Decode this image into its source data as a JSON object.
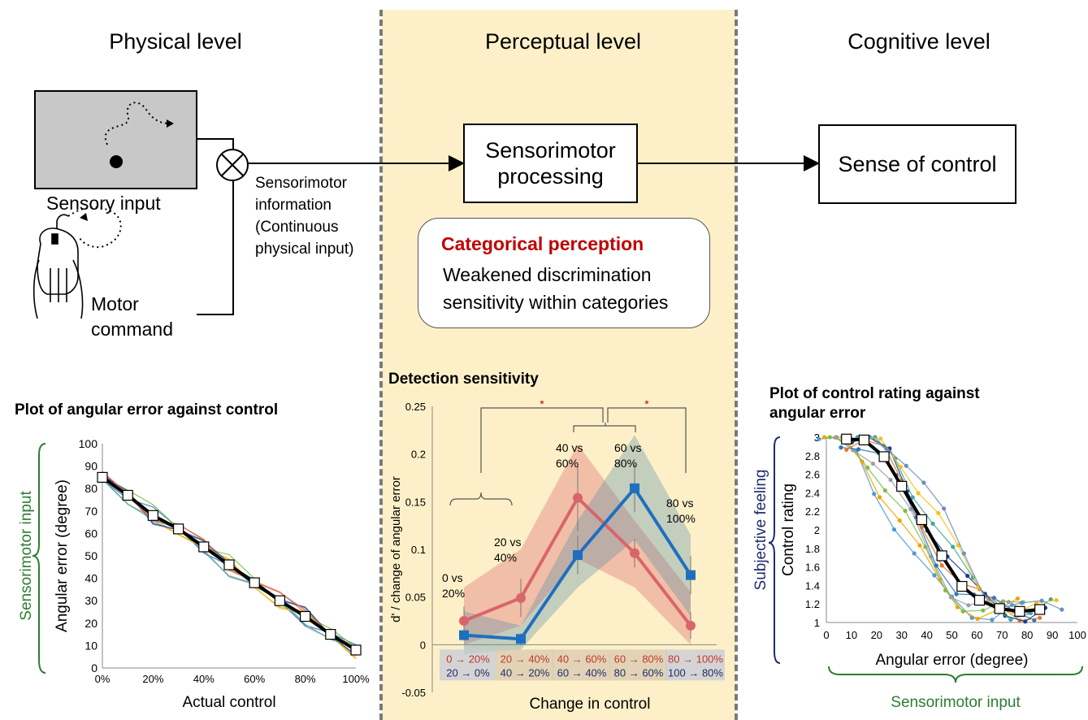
{
  "levels": {
    "physical": "Physical level",
    "perceptual": "Perceptual level",
    "cognitive": "Cognitive level"
  },
  "physical": {
    "sensory_input": "Sensory input",
    "motor_command_1": "Motor",
    "motor_command_2": "command",
    "sensorimotor_info": [
      "Sensorimotor",
      "information",
      "(Continuous",
      "physical input)"
    ]
  },
  "perceptual": {
    "processing_1": "Sensorimotor",
    "processing_2": "processing",
    "categorical_title": "Categorical perception",
    "categorical_text_1": "Weakened discrimination",
    "categorical_text_2": "sensitivity within categories"
  },
  "cognitive": {
    "sense_of_control": "Sense of control"
  },
  "plots": {
    "left_title": "Plot of angular error against control",
    "left_side_label": "Sensorimotor input",
    "middle_title": "Detection sensitivity",
    "right_title_1": "Plot of control rating against",
    "right_title_2": "angular error",
    "right_side_label": "Subjective feeling",
    "right_bottom_label": "Sensorimotor input"
  },
  "colors": {
    "accent_red": "#c00000",
    "accent_green": "#2e7d32",
    "accent_navy": "#1f2d6b",
    "panel_bg": "#fdf0c8",
    "series_red": "#d9656b",
    "series_blue": "#1f6fbf"
  },
  "chart_data": [
    {
      "type": "line",
      "title": "Plot of angular error against control",
      "xlabel": "Actual control",
      "ylabel": "Angular error (degree)",
      "x": [
        0,
        10,
        20,
        30,
        40,
        50,
        60,
        70,
        80,
        90,
        100
      ],
      "x_tick_labels": [
        "0%",
        "20%",
        "40%",
        "60%",
        "80%",
        "100%"
      ],
      "y_ticks": [
        0,
        10,
        20,
        30,
        40,
        50,
        60,
        70,
        80,
        90,
        100
      ],
      "ylim": [
        0,
        100
      ],
      "series": [
        {
          "values": [
            85,
            77,
            68,
            62,
            54,
            46,
            38,
            30,
            23,
            15,
            8
          ]
        }
      ]
    },
    {
      "type": "line",
      "title": "Detection sensitivity",
      "xlabel": "Change in control",
      "ylabel": "d' / change of angular error",
      "ylim": [
        -0.05,
        0.25
      ],
      "y_ticks": [
        "-0.05",
        "0",
        "0.05",
        "0.1",
        "0.15",
        "0.2",
        "0.25"
      ],
      "categories_red": [
        "0 → 20%",
        "20 → 40%",
        "40 → 60%",
        "60 → 80%",
        "80 → 100%"
      ],
      "categories_blue": [
        "20 → 0%",
        "40 → 20%",
        "60 → 40%",
        "80 → 60%",
        "100 → 80%"
      ],
      "point_labels": [
        "0 vs\n20%",
        "20 vs\n40%",
        "40 vs\n60%",
        "60 vs\n80%",
        "80 vs\n100%"
      ],
      "significance": [
        "*",
        "*"
      ],
      "series": [
        {
          "values": [
            0.025,
            0.049,
            0.154,
            0.096,
            0.02
          ]
        },
        {
          "values": [
            0.01,
            0.006,
            0.094,
            0.164,
            0.073
          ]
        }
      ]
    },
    {
      "type": "line",
      "title": "Plot of control rating against angular error",
      "xlabel": "Angular error (degree)",
      "ylabel": "Control rating",
      "xlim": [
        0,
        100
      ],
      "ylim": [
        1,
        3
      ],
      "x_ticks": [
        0,
        10,
        20,
        30,
        40,
        50,
        60,
        70,
        80,
        90,
        100
      ],
      "y_ticks": [
        "1",
        "1.2",
        "1.4",
        "1.6",
        "1.8",
        "2",
        "2.2",
        "2.4",
        "2.6",
        "2.8",
        "3"
      ],
      "series": [
        {
          "x": [
            8,
            15,
            23,
            30,
            38,
            46,
            54,
            61,
            69,
            77,
            85
          ],
          "values": [
            2.98,
            2.97,
            2.79,
            2.47,
            2.11,
            1.72,
            1.39,
            1.24,
            1.15,
            1.12,
            1.14
          ]
        }
      ]
    }
  ]
}
